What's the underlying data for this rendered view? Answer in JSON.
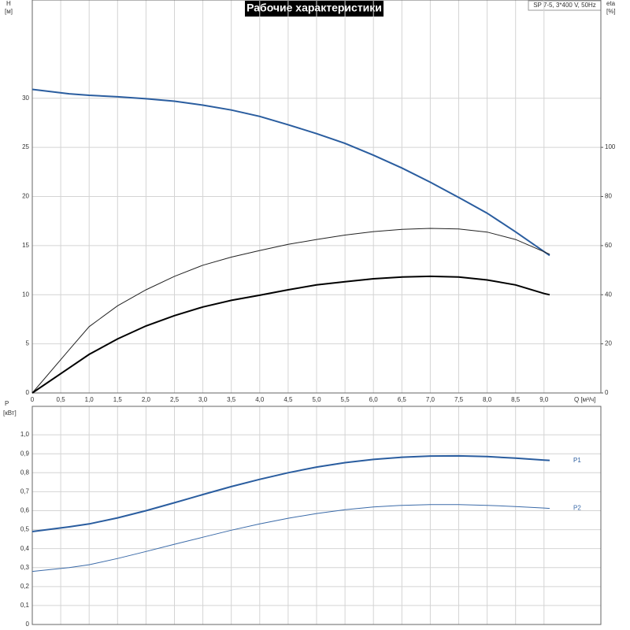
{
  "chart_data": [
    {
      "type": "line",
      "title": "Рабочие характеристики",
      "subtitle": "SP 7-5, 3*400 V, 50Hz",
      "ylabel": "H",
      "yunit": "[м]",
      "y2label": "eta",
      "y2unit": "[%]",
      "xlabel": "Q [м³/ч]",
      "x": [
        0,
        0.65,
        1,
        1.5,
        2,
        2.5,
        3,
        3.5,
        4,
        4.5,
        5,
        5.5,
        6,
        6.5,
        7,
        7.5,
        8,
        8.5,
        9,
        9.1
      ],
      "series": [
        {
          "color": "#2a5d9f",
          "width": 2,
          "values": [
            30.9,
            30.45,
            30.3,
            30.15,
            29.95,
            29.7,
            29.3,
            28.8,
            28.15,
            27.3,
            26.4,
            25.4,
            24.2,
            22.9,
            21.45,
            19.9,
            18.3,
            16.4,
            14.4,
            14.0
          ]
        },
        {
          "color": "#222222",
          "width": 1,
          "axis": "y2",
          "values": [
            0,
            17.6,
            27,
            35.5,
            42,
            47.5,
            52,
            55.3,
            58,
            60.5,
            62.5,
            64.3,
            65.7,
            66.6,
            67,
            66.8,
            65.5,
            62.5,
            57.5,
            56.5
          ]
        },
        {
          "color": "#000000",
          "width": 2,
          "axis": "y2",
          "values": [
            0,
            10.2,
            15.7,
            22,
            27.3,
            31.5,
            35,
            37.7,
            39.8,
            42,
            44,
            45.3,
            46.5,
            47.2,
            47.5,
            47.2,
            46,
            44,
            40.5,
            40
          ]
        }
      ],
      "xlim": [
        0,
        10
      ],
      "xticks": [
        0,
        {
          "value": 0.5,
          "label": "0,5"
        },
        {
          "value": 1,
          "label": "1,0"
        },
        {
          "value": 1.5,
          "label": "1,5"
        },
        {
          "value": 2,
          "label": "2,0"
        },
        {
          "value": 2.5,
          "label": "2,5"
        },
        {
          "value": 3,
          "label": "3,0"
        },
        {
          "value": 3.5,
          "label": "3,5"
        },
        {
          "value": 4,
          "label": "4,0"
        },
        {
          "value": 4.5,
          "label": "4,5"
        },
        {
          "value": 5,
          "label": "5,0"
        },
        {
          "value": 5.5,
          "label": "5,5"
        },
        {
          "value": 6,
          "label": "6,0"
        },
        {
          "value": 6.5,
          "label": "6,5"
        },
        {
          "value": 7,
          "label": "7,0"
        },
        {
          "value": 7.5,
          "label": "7,5"
        },
        {
          "value": 8,
          "label": "8,0"
        },
        {
          "value": 8.5,
          "label": "8,5"
        },
        {
          "value": 9,
          "label": "9,0"
        }
      ],
      "ylim": [
        0,
        40
      ],
      "yticks": [
        0,
        5,
        10,
        15,
        20,
        25,
        30
      ],
      "y2lim": [
        0,
        160
      ],
      "y2ticks": [
        0,
        20,
        40,
        60,
        80,
        100
      ],
      "grid": true
    },
    {
      "type": "line",
      "ylabel": "P",
      "yunit": "[кВт]",
      "x": [
        0,
        0.65,
        1,
        1.5,
        2,
        2.5,
        3,
        3.5,
        4,
        4.5,
        5,
        5.5,
        6,
        6.5,
        7,
        7.5,
        8,
        8.5,
        9,
        9.1
      ],
      "series": [
        {
          "name": "P1",
          "color": "#2a5d9f",
          "width": 2,
          "values": [
            0.49,
            0.515,
            0.53,
            0.562,
            0.6,
            0.642,
            0.685,
            0.727,
            0.765,
            0.8,
            0.83,
            0.853,
            0.87,
            0.882,
            0.888,
            0.889,
            0.885,
            0.877,
            0.867,
            0.865
          ]
        },
        {
          "name": "P2",
          "color": "#3a6aa8",
          "width": 1,
          "values": [
            0.28,
            0.3,
            0.315,
            0.348,
            0.385,
            0.423,
            0.46,
            0.497,
            0.53,
            0.56,
            0.585,
            0.605,
            0.62,
            0.628,
            0.632,
            0.632,
            0.628,
            0.622,
            0.614,
            0.612
          ]
        }
      ],
      "xlim": [
        0,
        10
      ],
      "ylim": [
        0,
        1.15
      ],
      "yticks": [
        0,
        {
          "value": 0.1,
          "label": "0,1"
        },
        {
          "value": 0.2,
          "label": "0,2"
        },
        {
          "value": 0.3,
          "label": "0,3"
        },
        {
          "value": 0.4,
          "label": "0,4"
        },
        {
          "value": 0.5,
          "label": "0,5"
        },
        {
          "value": 0.6,
          "label": "0,6"
        },
        {
          "value": 0.7,
          "label": "0,7"
        },
        {
          "value": 0.8,
          "label": "0,8"
        },
        {
          "value": 0.9,
          "label": "0,9"
        },
        {
          "value": 1,
          "label": "1,0"
        }
      ],
      "grid": true
    }
  ]
}
